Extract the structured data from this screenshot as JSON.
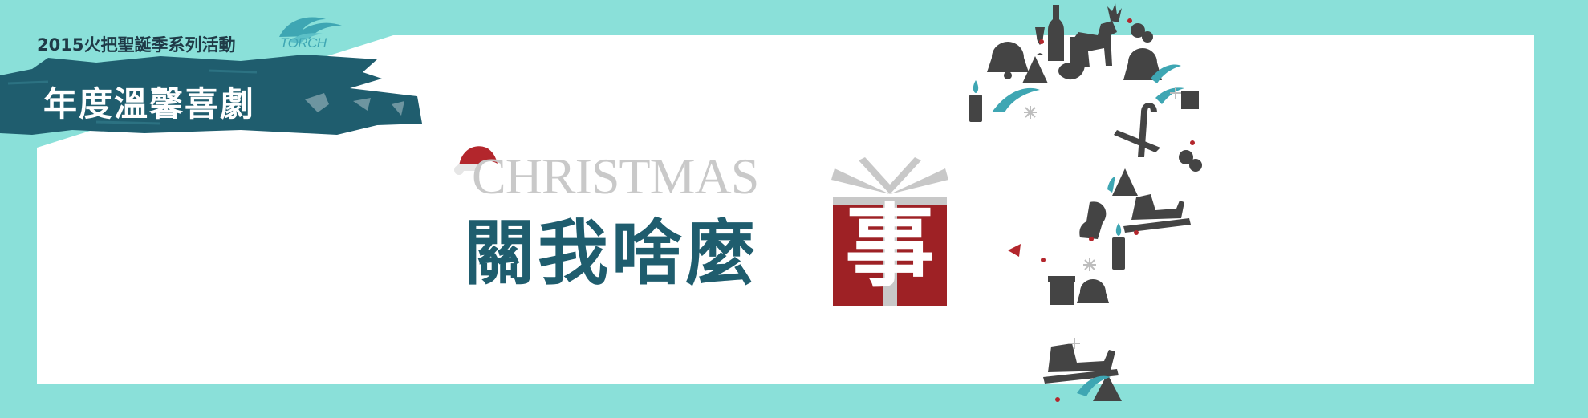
{
  "banner": {
    "series_title": "2015火把聖誕季系列活動",
    "logo_text": "TORCH",
    "category": "年度溫馨喜劇",
    "christmas_word": "CHRISTMAS",
    "headline": "關我啥麼",
    "gift_character": "事"
  },
  "colors": {
    "background": "#8ae0d9",
    "panel": "#ffffff",
    "brush": "#1f5d6e",
    "headline": "#1f5d6e",
    "gift_red": "#9e2125",
    "gift_ribbon": "#c8c8c8",
    "icons_dark": "#444444",
    "accent_teal": "#3ea6b3",
    "accent_red": "#b3262c"
  },
  "icons": [
    "santa-hat-icon",
    "gift-box-icon",
    "question-mark-icon",
    "bell-icon",
    "candle-icon",
    "wine-bottle-icon",
    "wine-glass-icon",
    "reindeer-icon",
    "christmas-tree-icon",
    "stocking-icon",
    "sleigh-icon",
    "candy-cane-icon",
    "holly-icon",
    "snowflake-icon",
    "music-note-icon",
    "present-icon"
  ]
}
